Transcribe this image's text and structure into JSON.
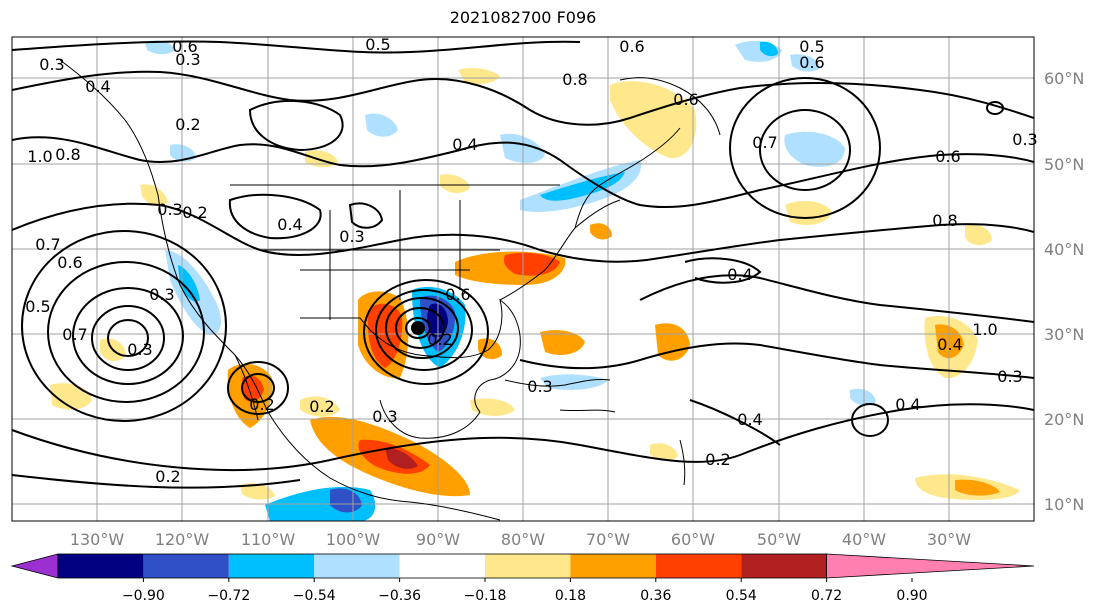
{
  "title": "2021082700 F096",
  "map": {
    "lon_labels": [
      "130°W",
      "120°W",
      "110°W",
      "100°W",
      "90°W",
      "80°W",
      "70°W",
      "60°W",
      "50°W",
      "40°W",
      "30°W"
    ],
    "lat_labels": [
      "60°N",
      "50°N",
      "40°N",
      "30°N",
      "20°N",
      "10°N"
    ],
    "contour_labels": [
      "0.3",
      "0.6",
      "0.5",
      "0.3",
      "0.6",
      "0.5",
      "0.6",
      "0.8",
      "0.4",
      "0.2",
      "0.4",
      "0.6",
      "1.0",
      "0.8",
      "0.2",
      "0.4",
      "0.3",
      "0.6",
      "0.7",
      "0.8",
      "0.7",
      "0.6",
      "0.5",
      "0.6",
      "0.7",
      "0.3",
      "0.4",
      "0.3",
      "1.0",
      "0.4",
      "0.3",
      "0.2",
      "0.3",
      "0.2",
      "0.3",
      "0.4",
      "0.2",
      "0.2",
      "0.3",
      "0.4",
      "0.2",
      "0.3"
    ],
    "colors": {
      "coast": "#000000",
      "contour": "#000000",
      "grid": "#a0a0a0"
    }
  },
  "colorbar": {
    "ticks": [
      "−0.90",
      "−0.72",
      "−0.54",
      "−0.36",
      "−0.18",
      "0.18",
      "0.36",
      "0.54",
      "0.72",
      "0.90"
    ],
    "colors": [
      "#9a30d0",
      "#000080",
      "#3050c8",
      "#00bfff",
      "#b0e0ff",
      "#ffffff",
      "#ffe88c",
      "#ffa000",
      "#ff4000",
      "#b02020",
      "#ff80b0"
    ]
  }
}
